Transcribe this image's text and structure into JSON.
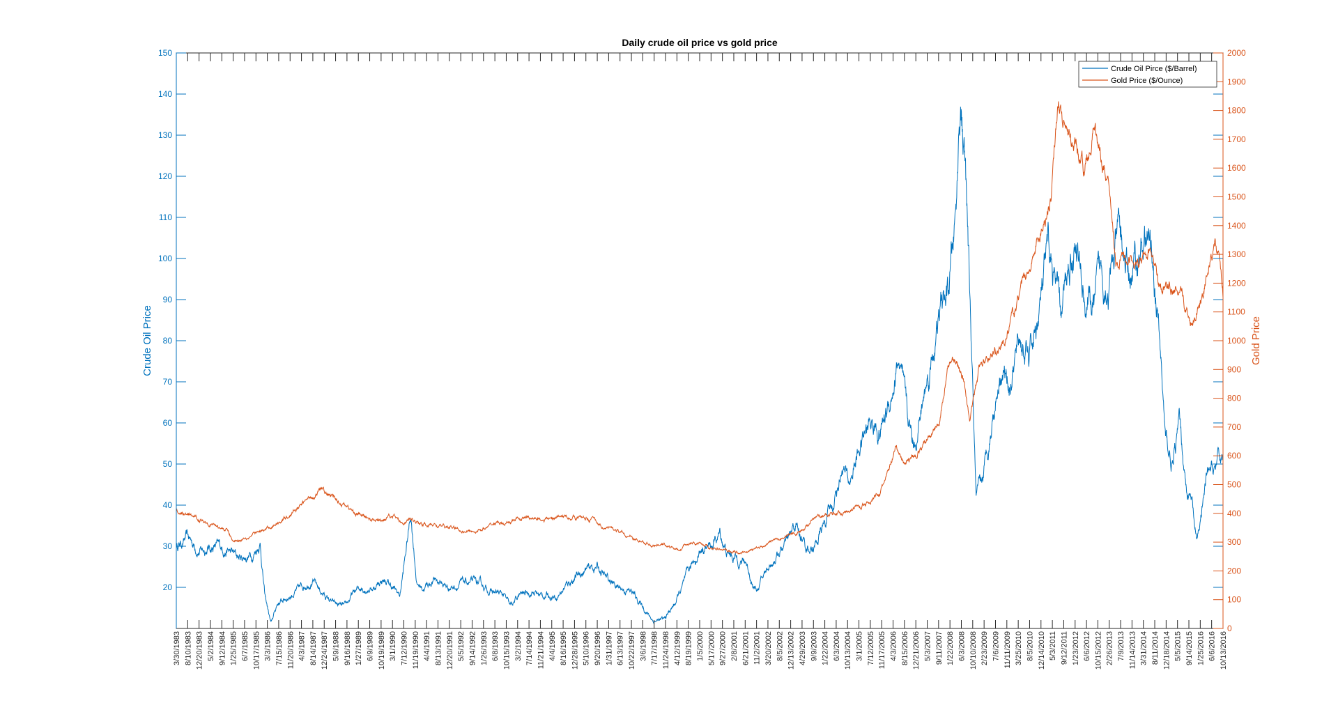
{
  "chart_data": {
    "type": "line",
    "title": "Daily crude oil price vs gold price",
    "grid": false,
    "legend_position": "top-right",
    "x_tick_labels": [
      "3/30/1983",
      "8/10/1983",
      "12/20/1983",
      "5/2/1984",
      "9/12/1984",
      "1/25/1985",
      "6/7/1985",
      "10/17/1985",
      "3/3/1986",
      "7/15/1986",
      "11/20/1986",
      "4/3/1987",
      "8/14/1987",
      "12/24/1987",
      "5/9/1988",
      "9/16/1988",
      "1/27/1989",
      "6/9/1989",
      "10/19/1989",
      "3/1/1990",
      "7/12/1990",
      "11/19/1990",
      "4/4/1991",
      "8/13/1991",
      "12/20/1991",
      "5/5/1992",
      "9/14/1992",
      "1/26/1993",
      "6/8/1993",
      "10/15/1993",
      "3/2/1994",
      "7/14/1994",
      "11/21/1994",
      "4/4/1995",
      "8/16/1995",
      "12/28/1995",
      "5/10/1996",
      "9/20/1996",
      "1/31/1997",
      "6/13/1997",
      "10/22/1997",
      "3/6/1998",
      "7/17/1998",
      "11/24/1998",
      "4/12/1999",
      "8/19/1999",
      "1/5/2000",
      "5/17/2000",
      "9/27/2000",
      "2/8/2001",
      "6/21/2001",
      "11/2/2001",
      "3/20/2002",
      "8/5/2002",
      "12/13/2002",
      "4/29/2003",
      "9/9/2003",
      "1/22/2004",
      "6/3/2004",
      "10/13/2004",
      "3/1/2005",
      "7/12/2005",
      "11/17/2005",
      "4/3/2006",
      "8/15/2006",
      "12/21/2006",
      "5/3/2007",
      "9/11/2007",
      "1/22/2008",
      "6/3/2008",
      "10/10/2008",
      "2/23/2009",
      "7/6/2009",
      "11/11/2009",
      "3/25/2010",
      "8/5/2010",
      "12/14/2010",
      "5/3/2011",
      "9/12/2011",
      "1/23/2012",
      "6/6/2012",
      "10/15/2012",
      "2/26/2013",
      "7/9/2013",
      "11/14/2013",
      "3/31/2014",
      "8/11/2014",
      "12/18/2014",
      "5/5/2015",
      "9/14/2015",
      "1/25/2016",
      "6/6/2016",
      "10/13/2016"
    ],
    "y_left": {
      "label": "Crude Oil Price",
      "ylim": [
        10,
        150
      ],
      "ticks": [
        20,
        30,
        40,
        50,
        60,
        70,
        80,
        90,
        100,
        110,
        120,
        130,
        140,
        150
      ],
      "color": "#0072bd"
    },
    "y_right": {
      "label": "Gold Price",
      "ylim": [
        0,
        2000
      ],
      "ticks": [
        0,
        100,
        200,
        300,
        400,
        500,
        600,
        700,
        800,
        900,
        1000,
        1100,
        1200,
        1300,
        1400,
        1500,
        1600,
        1700,
        1800,
        1900,
        2000
      ],
      "color": "#d95319"
    },
    "series": [
      {
        "name": "Crude Oil Pirce ($/Barrel)",
        "axis": "left",
        "color": "#0072bd",
        "x": [
          1983.25,
          1983.6,
          1984.0,
          1984.5,
          1984.9,
          1985.3,
          1985.7,
          1985.95,
          1986.1,
          1986.3,
          1986.5,
          1986.9,
          1987.3,
          1987.6,
          1987.9,
          1988.3,
          1988.7,
          1988.9,
          1989.2,
          1989.6,
          1989.9,
          1990.2,
          1990.45,
          1990.65,
          1990.8,
          1991.0,
          1991.2,
          1991.6,
          1992.0,
          1992.5,
          1992.9,
          1993.4,
          1993.8,
          1994.0,
          1994.3,
          1994.7,
          1995.0,
          1995.5,
          1996.0,
          1996.4,
          1996.8,
          1997.1,
          1997.5,
          1997.9,
          1998.2,
          1998.6,
          1998.95,
          1999.3,
          1999.6,
          1999.9,
          2000.2,
          2000.5,
          2000.75,
          2001.0,
          2001.3,
          2001.6,
          2001.85,
          2002.0,
          2002.3,
          2002.6,
          2002.95,
          2003.2,
          2003.5,
          2003.8,
          2004.1,
          2004.4,
          2004.7,
          2004.9,
          2005.3,
          2005.6,
          2005.9,
          2006.2,
          2006.5,
          2006.8,
          2007.0,
          2007.3,
          2007.6,
          2007.9,
          2008.1,
          2008.35,
          2008.5,
          2008.65,
          2008.8,
          2009.0,
          2009.2,
          2009.5,
          2009.8,
          2010.1,
          2010.4,
          2010.7,
          2011.0,
          2011.3,
          2011.5,
          2011.75,
          2012.0,
          2012.2,
          2012.5,
          2012.8,
          2013.0,
          2013.3,
          2013.6,
          2013.9,
          2014.2,
          2014.45,
          2014.7,
          2014.95,
          2015.1,
          2015.35,
          2015.55,
          2015.75,
          2015.95,
          2016.1,
          2016.4,
          2016.6,
          2016.8,
          2016.95
        ],
        "y": [
          30,
          32,
          29,
          30,
          29,
          27,
          28,
          31,
          18,
          11,
          16,
          18,
          20,
          22,
          19,
          16,
          15,
          18,
          20,
          20,
          22,
          20,
          18,
          29,
          38,
          21,
          20,
          22,
          20,
          21,
          21,
          19,
          18,
          15,
          18,
          19,
          18,
          18,
          22,
          24,
          25,
          22,
          20,
          19,
          16,
          12,
          12,
          16,
          21,
          26,
          30,
          30,
          33,
          28,
          27,
          26,
          20,
          20,
          25,
          28,
          31,
          35,
          30,
          30,
          35,
          40,
          50,
          45,
          55,
          60,
          58,
          65,
          75,
          60,
          55,
          65,
          77,
          88,
          90,
          110,
          140,
          120,
          90,
          40,
          45,
          60,
          75,
          70,
          80,
          75,
          85,
          100,
          95,
          85,
          100,
          105,
          90,
          88,
          95,
          95,
          105,
          95,
          100,
          105,
          100,
          75,
          55,
          50,
          60,
          45,
          40,
          30,
          45,
          48,
          50,
          52
        ]
      },
      {
        "name": "Gold Price ($/Ounce)",
        "axis": "right",
        "color": "#d95319",
        "x": [
          1983.25,
          1983.6,
          1984.0,
          1984.5,
          1984.9,
          1985.1,
          1985.5,
          1985.8,
          1986.1,
          1986.4,
          1986.8,
          1987.2,
          1987.6,
          1987.95,
          1988.3,
          1988.7,
          1989.0,
          1989.5,
          1989.9,
          1990.1,
          1990.5,
          1990.8,
          1991.2,
          1991.6,
          1992.0,
          1992.5,
          1992.9,
          1993.3,
          1993.6,
          1993.9,
          1994.2,
          1994.6,
          1995.0,
          1995.5,
          1996.0,
          1996.3,
          1996.7,
          1997.0,
          1997.4,
          1997.8,
          1998.2,
          1998.6,
          1999.0,
          1999.45,
          1999.7,
          2000.0,
          2000.5,
          2001.0,
          2001.4,
          2001.9,
          2002.3,
          2002.7,
          2003.0,
          2003.4,
          2003.8,
          2004.2,
          2004.6,
          2005.0,
          2005.4,
          2005.9,
          2006.2,
          2006.4,
          2006.7,
          2007.0,
          2007.4,
          2007.8,
          2008.1,
          2008.3,
          2008.6,
          2008.8,
          2009.1,
          2009.5,
          2009.9,
          2010.3,
          2010.7,
          2011.0,
          2011.4,
          2011.65,
          2011.9,
          2012.2,
          2012.5,
          2012.8,
          2013.0,
          2013.3,
          2013.5,
          2013.8,
          2014.2,
          2014.6,
          2014.9,
          2015.2,
          2015.6,
          2015.9,
          2016.1,
          2016.5,
          2016.7,
          2016.85,
          2016.95
        ],
        "y": [
          410,
          390,
          380,
          360,
          340,
          300,
          320,
          330,
          340,
          360,
          390,
          420,
          460,
          480,
          450,
          430,
          400,
          380,
          370,
          400,
          370,
          380,
          360,
          360,
          350,
          340,
          340,
          350,
          370,
          360,
          380,
          385,
          380,
          385,
          390,
          385,
          380,
          350,
          340,
          320,
          300,
          290,
          290,
          270,
          300,
          290,
          280,
          270,
          265,
          275,
          300,
          310,
          330,
          340,
          380,
          400,
          400,
          420,
          430,
          470,
          550,
          620,
          580,
          600,
          650,
          720,
          900,
          950,
          850,
          730,
          900,
          950,
          1000,
          1120,
          1250,
          1350,
          1500,
          1850,
          1700,
          1650,
          1600,
          1750,
          1650,
          1550,
          1300,
          1300,
          1250,
          1300,
          1200,
          1200,
          1150,
          1070,
          1100,
          1250,
          1340,
          1250,
          1150
        ]
      }
    ]
  }
}
